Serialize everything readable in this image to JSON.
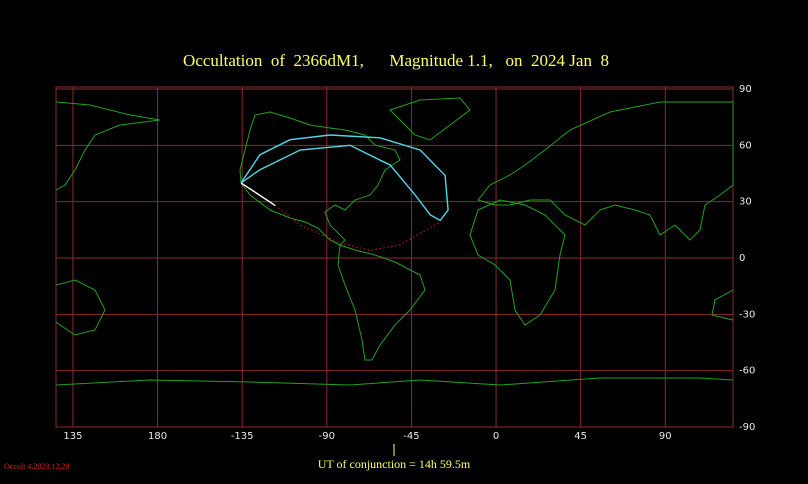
{
  "chart_data": {
    "type": "map",
    "title": "Occultation  of  2366dM1,      Magnitude 1.1,   on  2024 Jan  8",
    "annotation": "UT of conjunction = 14h 59.5m",
    "footer": "Occult 4.2023.12.20",
    "title_color": "#ffff66",
    "grid": true,
    "grid_color": "#8b2a2a",
    "xlim": [
      126,
      486
    ],
    "xticks": [
      {
        "value": 135,
        "label": "135"
      },
      {
        "value": 180,
        "label": "180"
      },
      {
        "value": 225,
        "label": "-135"
      },
      {
        "value": 270,
        "label": "-90"
      },
      {
        "value": 315,
        "label": "-45"
      },
      {
        "value": 360,
        "label": "0"
      },
      {
        "value": 405,
        "label": "45"
      },
      {
        "value": 450,
        "label": "90"
      }
    ],
    "ylim": [
      -90,
      90
    ],
    "yticks": [
      90,
      60,
      30,
      0,
      -30,
      -60,
      -90
    ],
    "series": [
      {
        "color": "#4fd8e8",
        "dashed": false,
        "x": [
          224.4,
          234.5,
          250.5,
          271.7,
          298.3,
          319.6,
          332.9,
          334.5,
          330.3,
          325,
          317,
          303.7,
          282.4,
          255.8,
          234.5,
          224.4
        ],
        "values": [
          40,
          55,
          63,
          65.5,
          64,
          57.5,
          44,
          25.5,
          20,
          23,
          33.5,
          49.5,
          60,
          57.5,
          47,
          40
        ]
      },
      {
        "color": "#ffffff",
        "dashed": false,
        "x": [
          224.4,
          242.5
        ],
        "values": [
          40,
          28
        ]
      },
      {
        "color": "#d02020",
        "dashed": true,
        "x": [
          242.5,
          255.8,
          277,
          293,
          309,
          330
        ],
        "values": [
          28,
          17.5,
          8,
          4,
          7,
          19
        ]
      }
    ]
  }
}
